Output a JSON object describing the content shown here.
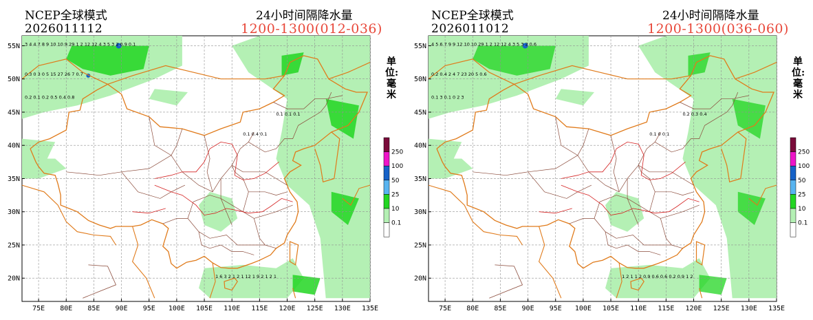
{
  "panels": [
    {
      "model": "NCEP全球模式",
      "init_time": "2026011112",
      "title": "24小时间隔降水量",
      "period": "1200-1300(012-036)",
      "unit": "单位: 毫米"
    },
    {
      "model": "NCEP全球模式",
      "init_time": "2026011012",
      "title": "24小时间隔降水量",
      "period": "1200-1300(036-060)",
      "unit": "单位: 毫米"
    }
  ],
  "axes": {
    "lat_labels": [
      "55N",
      "50N",
      "45N",
      "40N",
      "35N",
      "30N",
      "25N",
      "20N"
    ],
    "lon_labels": [
      "75E",
      "80E",
      "85E",
      "90E",
      "95E",
      "100E",
      "105E",
      "110E",
      "115E",
      "120E",
      "125E",
      "130E",
      "135E"
    ]
  },
  "legend": {
    "levels": [
      "250",
      "100",
      "50",
      "25",
      "10",
      "0.1"
    ],
    "colors": [
      "#7a0b3a",
      "#ee15c8",
      "#1662c8",
      "#58b4f0",
      "#22d622",
      "#b4f0b4",
      "#ffffff"
    ]
  },
  "colors": {
    "border": "#e07a1a",
    "province": "#8a4a3a",
    "river": "#d42020",
    "grid": "#909090",
    "light_green": "#b4f0b4",
    "green": "#22d622",
    "blue": "#1662c8"
  },
  "sample_values": {
    "left": [
      "3 4 4 7 8 9 10 10 9 29 1 2 12 12 4 3 5 3 2 0.9 0.1",
      "0.3 0 3 0 5 15 27 26 7 0.7",
      "0.2 0.1 0.2 0.5 0.4 0.8",
      "0.1 0.4 0.1",
      "0.1 0.1 0.1",
      "1 6 3 2 1 2 1 12 1 9 2 1 2 1"
    ],
    "right": [
      "4 5 6 7 9 9 12 10 10 29 1 2 12 12 4 3 5 3 2 0.6",
      "0.2 0.4 2 4 7 23 20 5 0.6",
      "0.1 3 0.1 0 2 3",
      "0.1 0 0.1",
      "0.2 0.3 0.4",
      "1 2 1 1 2 0.9 0.6 0.6 0.2 0.9 1 2"
    ]
  }
}
